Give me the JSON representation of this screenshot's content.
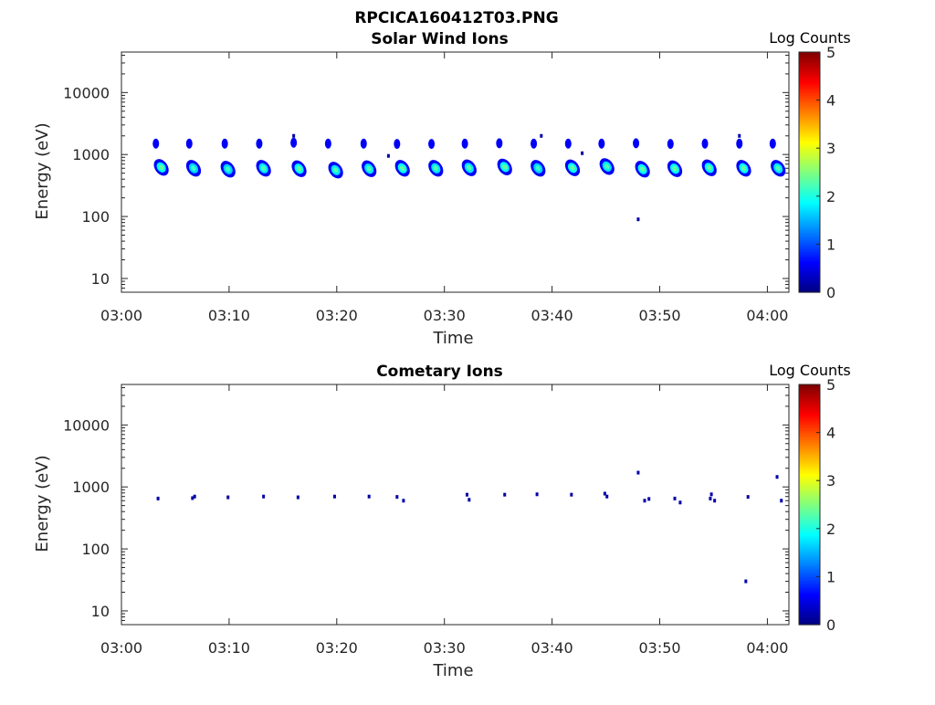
{
  "figure_title": "RPCICA160412T03.PNG",
  "chart_data": [
    {
      "type": "heatmap",
      "title": "Solar Wind Ions",
      "xlabel": "Time",
      "ylabel": "Energy (eV)",
      "x_ticks": [
        "03:00",
        "03:10",
        "03:20",
        "03:30",
        "03:40",
        "03:50",
        "04:00"
      ],
      "x_range_minutes": [
        0,
        62
      ],
      "y_scale": "log",
      "y_ticks": [
        10,
        100,
        1000,
        10000
      ],
      "y_range": [
        6,
        45000
      ],
      "colorbar": {
        "label": "Log Counts",
        "range": [
          0,
          5
        ],
        "ticks": [
          0,
          1,
          2,
          3,
          4,
          5
        ],
        "colormap": "jet"
      },
      "spots": [
        {
          "t": 3.2,
          "e": 1500,
          "v": 0.6
        },
        {
          "t": 3.7,
          "e": 620,
          "v": 1.6
        },
        {
          "t": 6.3,
          "e": 1500,
          "v": 0.6
        },
        {
          "t": 6.7,
          "e": 600,
          "v": 1.4
        },
        {
          "t": 9.6,
          "e": 1500,
          "v": 0.6
        },
        {
          "t": 9.9,
          "e": 580,
          "v": 1.4
        },
        {
          "t": 12.8,
          "e": 1500,
          "v": 0.6
        },
        {
          "t": 13.2,
          "e": 600,
          "v": 1.5
        },
        {
          "t": 16.0,
          "e": 1550,
          "v": 0.6
        },
        {
          "t": 16.5,
          "e": 590,
          "v": 1.6
        },
        {
          "t": 19.2,
          "e": 1500,
          "v": 0.6
        },
        {
          "t": 19.9,
          "e": 560,
          "v": 1.5
        },
        {
          "t": 22.5,
          "e": 1500,
          "v": 0.6
        },
        {
          "t": 23.0,
          "e": 590,
          "v": 1.5
        },
        {
          "t": 25.6,
          "e": 1480,
          "v": 0.6
        },
        {
          "t": 26.1,
          "e": 600,
          "v": 1.6
        },
        {
          "t": 28.8,
          "e": 1480,
          "v": 0.6
        },
        {
          "t": 29.2,
          "e": 600,
          "v": 1.5
        },
        {
          "t": 31.9,
          "e": 1500,
          "v": 0.6
        },
        {
          "t": 32.3,
          "e": 610,
          "v": 1.5
        },
        {
          "t": 35.1,
          "e": 1520,
          "v": 0.6
        },
        {
          "t": 35.6,
          "e": 630,
          "v": 1.6
        },
        {
          "t": 38.3,
          "e": 1500,
          "v": 0.6
        },
        {
          "t": 38.7,
          "e": 600,
          "v": 1.4
        },
        {
          "t": 41.5,
          "e": 1500,
          "v": 0.6
        },
        {
          "t": 41.9,
          "e": 610,
          "v": 1.6
        },
        {
          "t": 44.6,
          "e": 1500,
          "v": 0.6
        },
        {
          "t": 45.1,
          "e": 640,
          "v": 1.5
        },
        {
          "t": 47.8,
          "e": 1520,
          "v": 0.6
        },
        {
          "t": 48.4,
          "e": 580,
          "v": 1.6
        },
        {
          "t": 51.0,
          "e": 1480,
          "v": 0.6
        },
        {
          "t": 51.4,
          "e": 590,
          "v": 1.6
        },
        {
          "t": 54.2,
          "e": 1500,
          "v": 0.6
        },
        {
          "t": 54.6,
          "e": 610,
          "v": 1.6
        },
        {
          "t": 57.4,
          "e": 1500,
          "v": 0.6
        },
        {
          "t": 57.8,
          "e": 600,
          "v": 1.6
        },
        {
          "t": 60.5,
          "e": 1500,
          "v": 0.6
        },
        {
          "t": 61.0,
          "e": 600,
          "v": 1.5
        }
      ],
      "dots": [
        {
          "t": 16.0,
          "e": 2000,
          "v": 0.4
        },
        {
          "t": 39.0,
          "e": 2000,
          "v": 0.4
        },
        {
          "t": 42.8,
          "e": 1050,
          "v": 0.4
        },
        {
          "t": 24.8,
          "e": 950,
          "v": 0.4
        },
        {
          "t": 48.0,
          "e": 90,
          "v": 0.4
        },
        {
          "t": 57.4,
          "e": 2000,
          "v": 0.4
        }
      ]
    },
    {
      "type": "heatmap",
      "title": "Cometary Ions",
      "xlabel": "Time",
      "ylabel": "Energy (eV)",
      "x_ticks": [
        "03:00",
        "03:10",
        "03:20",
        "03:30",
        "03:40",
        "03:50",
        "04:00"
      ],
      "x_range_minutes": [
        0,
        62
      ],
      "y_scale": "log",
      "y_ticks": [
        10,
        100,
        1000,
        10000
      ],
      "y_range": [
        6,
        45000
      ],
      "colorbar": {
        "label": "Log Counts",
        "range": [
          0,
          5
        ],
        "ticks": [
          0,
          1,
          2,
          3,
          4,
          5
        ],
        "colormap": "jet"
      },
      "dots": [
        {
          "t": 3.4,
          "e": 650,
          "v": 0.4
        },
        {
          "t": 6.6,
          "e": 660,
          "v": 0.4
        },
        {
          "t": 6.8,
          "e": 700,
          "v": 0.4
        },
        {
          "t": 9.9,
          "e": 680,
          "v": 0.4
        },
        {
          "t": 13.2,
          "e": 700,
          "v": 0.4
        },
        {
          "t": 16.4,
          "e": 680,
          "v": 0.4
        },
        {
          "t": 19.8,
          "e": 700,
          "v": 0.4
        },
        {
          "t": 23.0,
          "e": 700,
          "v": 0.4
        },
        {
          "t": 25.6,
          "e": 690,
          "v": 0.4
        },
        {
          "t": 26.2,
          "e": 600,
          "v": 0.4
        },
        {
          "t": 32.1,
          "e": 750,
          "v": 0.4
        },
        {
          "t": 32.3,
          "e": 620,
          "v": 0.4
        },
        {
          "t": 35.6,
          "e": 750,
          "v": 0.5
        },
        {
          "t": 38.6,
          "e": 760,
          "v": 0.4
        },
        {
          "t": 41.8,
          "e": 750,
          "v": 0.4
        },
        {
          "t": 44.9,
          "e": 780,
          "v": 0.4
        },
        {
          "t": 45.1,
          "e": 700,
          "v": 0.4
        },
        {
          "t": 48.0,
          "e": 1700,
          "v": 0.4
        },
        {
          "t": 48.6,
          "e": 600,
          "v": 0.4
        },
        {
          "t": 49.0,
          "e": 640,
          "v": 0.4
        },
        {
          "t": 51.4,
          "e": 650,
          "v": 0.4
        },
        {
          "t": 51.9,
          "e": 560,
          "v": 0.4
        },
        {
          "t": 54.8,
          "e": 760,
          "v": 0.4
        },
        {
          "t": 54.7,
          "e": 650,
          "v": 0.4
        },
        {
          "t": 55.1,
          "e": 600,
          "v": 0.4
        },
        {
          "t": 58.2,
          "e": 690,
          "v": 0.4
        },
        {
          "t": 58.0,
          "e": 30,
          "v": 0.4
        },
        {
          "t": 60.9,
          "e": 1450,
          "v": 0.4
        },
        {
          "t": 61.3,
          "e": 600,
          "v": 0.4
        }
      ]
    }
  ]
}
